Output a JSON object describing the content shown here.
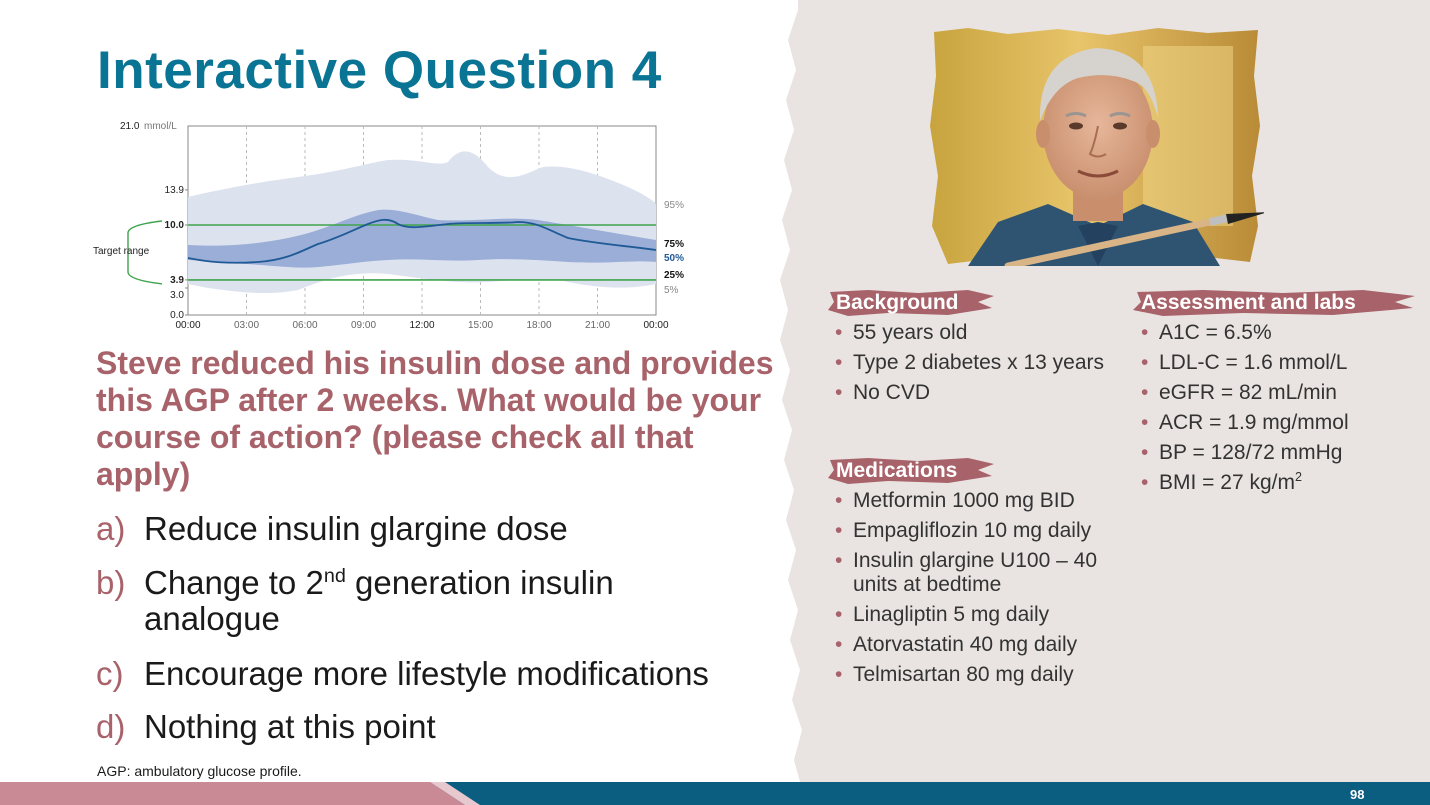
{
  "title": "Interactive Question 4",
  "agp": {
    "y_axis_top_label": "21.0",
    "y_axis_unit": "mmol/L",
    "y_ticks": [
      "13.9",
      "10.0",
      "3.9",
      "3.0",
      "0.0"
    ],
    "x_ticks": [
      "00:00",
      "03:00",
      "06:00",
      "09:00",
      "12:00",
      "15:00",
      "18:00",
      "21:00",
      "00:00"
    ],
    "target_range_label": "Target range",
    "percentile_labels": [
      "95%",
      "75%",
      "50%",
      "25%",
      "5%"
    ],
    "colors": {
      "outer_band": "#dde2ef",
      "inner_band": "#9aaed7",
      "median": "#1f5a96",
      "target": "#3fa34d",
      "frame": "#888888"
    }
  },
  "question": "Steve reduced his insulin dose and provides this AGP after 2 weeks. What would be your course of action? (please check all that apply)",
  "options": {
    "a": {
      "letter": "a)",
      "text": "Reduce insulin glargine dose"
    },
    "b": {
      "letter": "b)",
      "text_pre": "Change to 2",
      "text_sup": "nd",
      "text_post": " generation insulin analogue"
    },
    "c": {
      "letter": "c)",
      "text": "Encourage more lifestyle modifications"
    },
    "d": {
      "letter": "d)",
      "text": "Nothing at this point"
    }
  },
  "footnote": "AGP: ambulatory glucose profile.",
  "page_number": "98",
  "background": {
    "heading": "Background",
    "items": [
      "55 years old",
      "Type 2 diabetes x 13 years",
      "No CVD"
    ]
  },
  "medications": {
    "heading": "Medications",
    "items": [
      "Metformin 1000 mg BID",
      "Empagliflozin 10 mg daily",
      "Insulin glargine U100 – 40 units at bedtime",
      "Linagliptin 5 mg daily",
      "Atorvastatin 40 mg daily",
      "Telmisartan 80 mg daily"
    ]
  },
  "assessment": {
    "heading": "Assessment and labs",
    "items": [
      "A1C = 6.5%",
      "LDL-C = 1.6 mmol/L",
      "eGFR =  82 mL/min",
      "ACR = 1.9 mg/mmol",
      "BP = 128/72 mmHg"
    ],
    "bmi_pre": "BMI = 27 kg/m",
    "bmi_sup": "2"
  },
  "colors": {
    "title": "#0a7494",
    "accent": "#a8626a",
    "panel": "#e9e4e2",
    "footer_pink": "#c98a95",
    "footer_teal": "#0b5e80"
  },
  "photo_icon": "portrait-of-older-man-with-paintbrush"
}
